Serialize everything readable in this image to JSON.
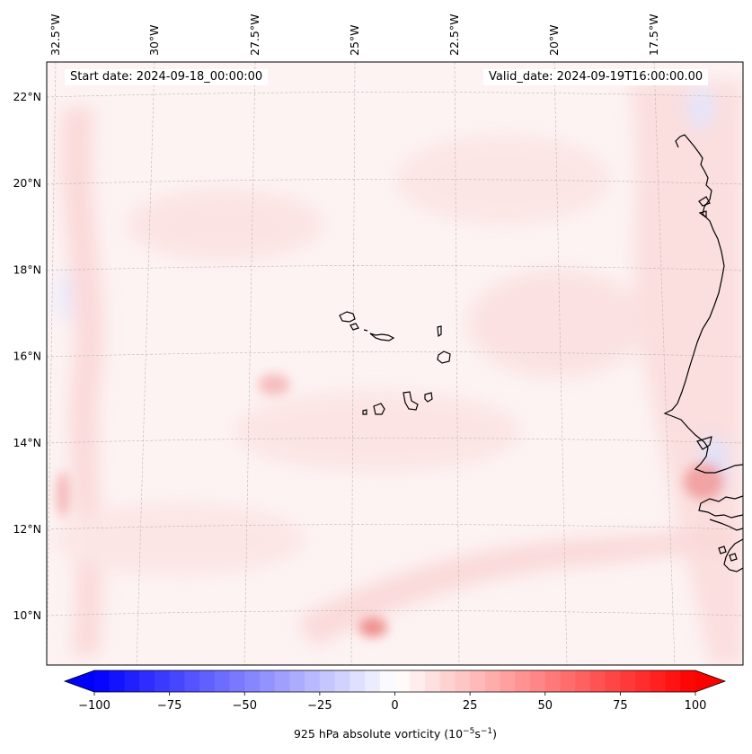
{
  "chart_data": {
    "type": "heatmap",
    "projection": "map",
    "variable": "925 hPa absolute vorticity",
    "units": "10^-5 s^-1",
    "colorbar": {
      "label_prefix": "925 hPa absolute vorticity (10",
      "label_exp1": "−5",
      "label_mid": "s",
      "label_exp2": "−1",
      "label_suffix": ")",
      "range": [
        -100,
        100
      ],
      "step": 5,
      "colormap": "bwr",
      "extend": "both",
      "ticks": [
        -100,
        -75,
        -50,
        -25,
        0,
        25,
        50,
        75,
        100
      ],
      "tick_labels": [
        "−100",
        "−75",
        "−50",
        "−25",
        "0",
        "25",
        "50",
        "75",
        "100"
      ]
    },
    "annotations": {
      "start_date": "Start date: 2024-09-18_00:00:00",
      "valid_date": "Valid_date: 2024-09-19T16:00:00.00"
    },
    "lon_labels": [
      "32.5°W",
      "30°W",
      "27.5°W",
      "25°W",
      "22.5°W",
      "20°W",
      "17.5°W"
    ],
    "lon_values": [
      -32.5,
      -30,
      -27.5,
      -25,
      -22.5,
      -20,
      -17.5
    ],
    "lat_labels": [
      "22°N",
      "20°N",
      "18°N",
      "16°N",
      "14°N",
      "12°N",
      "10°N"
    ],
    "lat_values": [
      22,
      20,
      18,
      16,
      14,
      12,
      10
    ],
    "extent": {
      "lon": [
        -33,
        -15.5
      ],
      "lat": [
        9,
        23
      ]
    },
    "features": [
      "coastlines",
      "gridlines"
    ],
    "highlights": [
      {
        "lon": -24.7,
        "lat": 9.8,
        "value": 45
      },
      {
        "lon": -16.0,
        "lat": 13.0,
        "value": 40
      },
      {
        "lon": -27.0,
        "lat": 15.3,
        "value": 30
      },
      {
        "lon": -32.7,
        "lat": 12.8,
        "value": 30
      }
    ],
    "colors": {
      "negative": "#0000ff",
      "neutral": "#ffffff",
      "positive": "#ff0000",
      "coastline": "#000000",
      "grid": "#b0b0b0"
    }
  }
}
